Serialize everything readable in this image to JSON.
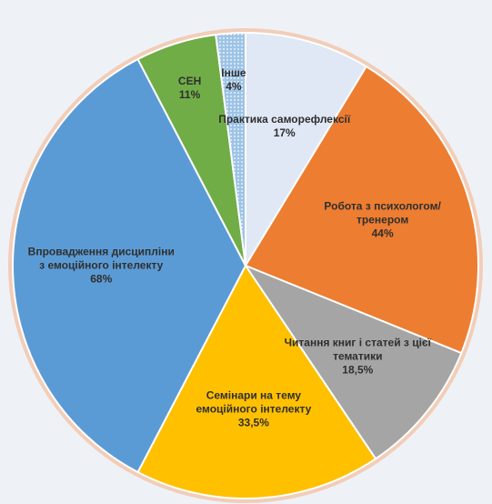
{
  "chart_data": {
    "type": "pie",
    "categories": [
      "Практика саморефлексії",
      "Робота з психологом/тренером",
      "Читання книг і статей з цієї тематики",
      "Семінари на тему емоційного інтелекту",
      "Впровадження дисципліни з емоційного інтелекту",
      "СЕН",
      "Інше"
    ],
    "values": [
      17,
      44,
      18.5,
      33.5,
      68,
      11,
      4
    ],
    "value_labels": [
      "17%",
      "44%",
      "18,5%",
      "33,5%",
      "68%",
      "11%",
      "4%"
    ],
    "colors": [
      "#dfe8f4",
      "#ed7d31",
      "#a5a5a5",
      "#ffc000",
      "#5b9bd5",
      "#70ad47",
      "#9dc3e6"
    ]
  }
}
